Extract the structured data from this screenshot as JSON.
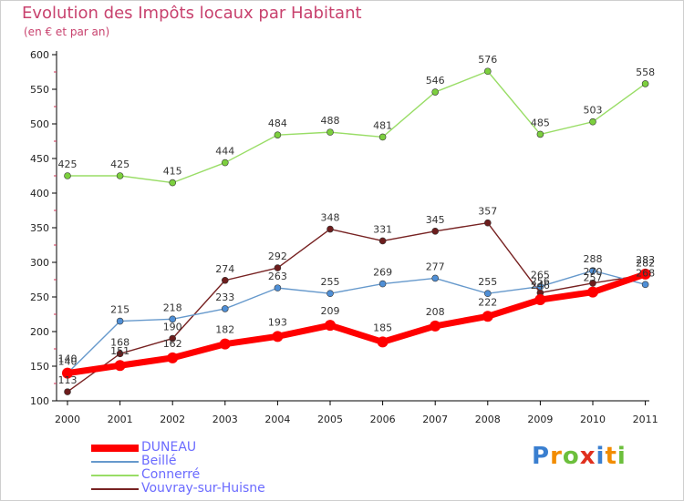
{
  "header": {
    "title": "Evolution des Impôts locaux par Habitant",
    "subtitle": "(en € et par an)"
  },
  "chart_data": {
    "type": "line",
    "title": "Evolution des Impôts locaux par Habitant",
    "subtitle": "(en € et par an)",
    "xlabel": "",
    "ylabel": "",
    "categories": [
      "2000",
      "2001",
      "2002",
      "2003",
      "2004",
      "2005",
      "2006",
      "2007",
      "2008",
      "2009",
      "2010",
      "2011"
    ],
    "ylim": [
      100,
      600
    ],
    "yticks": [
      100,
      150,
      200,
      250,
      300,
      350,
      400,
      450,
      500,
      550,
      600
    ],
    "grid": false,
    "legend_position": "bottom-left",
    "series": [
      {
        "name": "DUNEAU",
        "color": "#ff0000",
        "values": [
          140,
          151,
          162,
          182,
          193,
          209,
          185,
          208,
          222,
          246,
          257,
          283
        ]
      },
      {
        "name": "Beillé",
        "color": "#6699cc",
        "values": [
          140,
          215,
          218,
          233,
          263,
          255,
          269,
          277,
          255,
          265,
          288,
          268
        ]
      },
      {
        "name": "Connerré",
        "color": "#99dd66",
        "values": [
          425,
          425,
          415,
          444,
          484,
          488,
          481,
          546,
          576,
          485,
          503,
          558
        ]
      },
      {
        "name": "Vouvray-sur-Huisne",
        "color": "#772222",
        "values": [
          113,
          168,
          190,
          274,
          292,
          348,
          331,
          345,
          357,
          256,
          270,
          282
        ]
      }
    ]
  },
  "logo": {
    "letters": [
      "P",
      "r",
      "o",
      "x",
      "i",
      "t",
      "i"
    ],
    "colors": [
      "#3a7fd0",
      "#f28c00",
      "#6cbf3c",
      "#e0301e",
      "#3a7fd0",
      "#f28c00",
      "#6cbf3c"
    ]
  }
}
